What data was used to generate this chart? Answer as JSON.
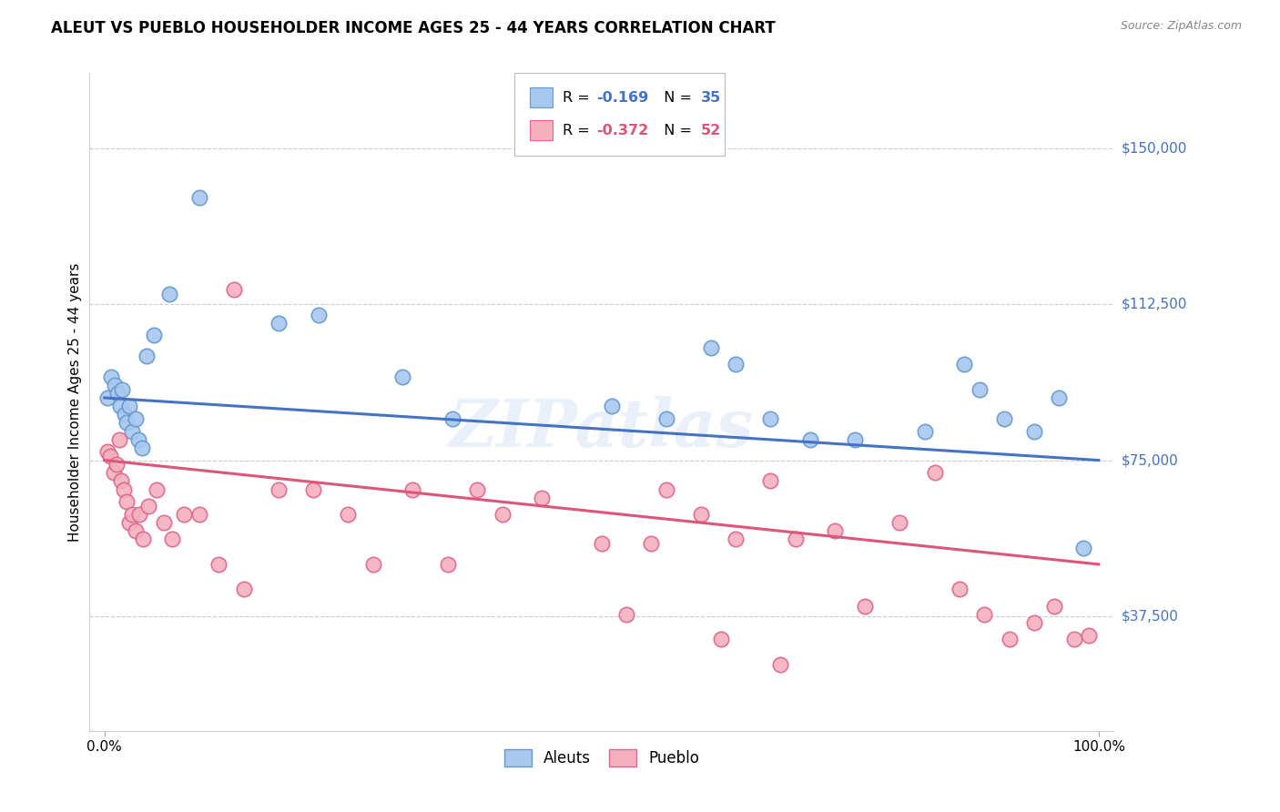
{
  "title": "ALEUT VS PUEBLO HOUSEHOLDER INCOME AGES 25 - 44 YEARS CORRELATION CHART",
  "source": "Source: ZipAtlas.com",
  "ylabel": "Householder Income Ages 25 - 44 years",
  "ytick_labels": [
    "$37,500",
    "$75,000",
    "$112,500",
    "$150,000"
  ],
  "ytick_values": [
    37500,
    75000,
    112500,
    150000
  ],
  "ymin": 10000,
  "ymax": 168000,
  "xmin": -0.015,
  "xmax": 1.015,
  "legend_r1": "-0.169",
  "legend_n1": "35",
  "legend_r2": "-0.372",
  "legend_n2": "52",
  "aleuts_color": "#a8c8f0",
  "aleuts_edge_color": "#6699cc",
  "pueblo_color": "#f5b0c0",
  "pueblo_edge_color": "#dd6688",
  "trend_blue": "#4472c4",
  "trend_pink": "#dd5577",
  "aleuts_x": [
    0.003,
    0.007,
    0.01,
    0.013,
    0.016,
    0.018,
    0.02,
    0.022,
    0.025,
    0.028,
    0.031,
    0.034,
    0.038,
    0.042,
    0.05,
    0.065,
    0.095,
    0.175,
    0.215,
    0.3,
    0.35,
    0.51,
    0.565,
    0.61,
    0.635,
    0.67,
    0.71,
    0.755,
    0.825,
    0.865,
    0.88,
    0.905,
    0.935,
    0.96,
    0.985
  ],
  "aleuts_y": [
    90000,
    95000,
    93000,
    91000,
    88000,
    92000,
    86000,
    84000,
    88000,
    82000,
    85000,
    80000,
    78000,
    100000,
    105000,
    115000,
    138000,
    108000,
    110000,
    95000,
    85000,
    88000,
    85000,
    102000,
    98000,
    85000,
    80000,
    80000,
    82000,
    98000,
    92000,
    85000,
    82000,
    90000,
    54000
  ],
  "pueblo_x": [
    0.003,
    0.006,
    0.009,
    0.012,
    0.015,
    0.017,
    0.019,
    0.022,
    0.025,
    0.028,
    0.031,
    0.035,
    0.039,
    0.044,
    0.052,
    0.06,
    0.068,
    0.08,
    0.095,
    0.115,
    0.14,
    0.175,
    0.21,
    0.245,
    0.27,
    0.31,
    0.345,
    0.375,
    0.4,
    0.44,
    0.5,
    0.525,
    0.565,
    0.6,
    0.635,
    0.67,
    0.695,
    0.735,
    0.765,
    0.8,
    0.835,
    0.86,
    0.885,
    0.91,
    0.935,
    0.955,
    0.975,
    0.99,
    0.13,
    0.55,
    0.62,
    0.68
  ],
  "pueblo_y": [
    77000,
    76000,
    72000,
    74000,
    80000,
    70000,
    68000,
    65000,
    60000,
    62000,
    58000,
    62000,
    56000,
    64000,
    68000,
    60000,
    56000,
    62000,
    62000,
    50000,
    44000,
    68000,
    68000,
    62000,
    50000,
    68000,
    50000,
    68000,
    62000,
    66000,
    55000,
    38000,
    68000,
    62000,
    56000,
    70000,
    56000,
    58000,
    40000,
    60000,
    72000,
    44000,
    38000,
    32000,
    36000,
    40000,
    32000,
    33000,
    116000,
    55000,
    32000,
    26000
  ],
  "watermark_text": "ZIPatlas",
  "watermark_color": "#d0dff5",
  "watermark_alpha": 0.45
}
